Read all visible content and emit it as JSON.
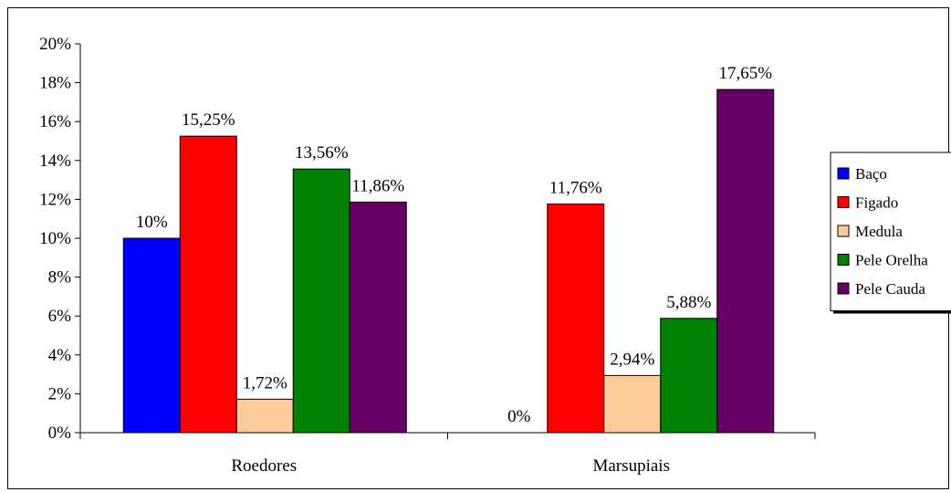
{
  "chart_data": {
    "type": "bar",
    "categories": [
      "Roedores",
      "Marsupiais"
    ],
    "series": [
      {
        "name": "Baço",
        "color": "#0000FF",
        "values": [
          10,
          0
        ],
        "labels": [
          "10%",
          "0%"
        ]
      },
      {
        "name": "Figado",
        "color": "#FF0000",
        "values": [
          15.25,
          11.76
        ],
        "labels": [
          "15,25%",
          "11,76%"
        ]
      },
      {
        "name": "Medula",
        "color": "#FFCC99",
        "values": [
          1.72,
          2.94
        ],
        "labels": [
          "1,72%",
          "2,94%"
        ]
      },
      {
        "name": "Pele Orelha",
        "color": "#008000",
        "values": [
          13.56,
          5.88
        ],
        "labels": [
          "13,56%",
          "5,88%"
        ]
      },
      {
        "name": "Pele Cauda",
        "color": "#660066",
        "values": [
          11.86,
          17.65
        ],
        "labels": [
          "11,86%",
          "17,65%"
        ]
      }
    ],
    "yticks": [
      "0%",
      "2%",
      "4%",
      "6%",
      "8%",
      "10%",
      "12%",
      "14%",
      "16%",
      "18%",
      "20%"
    ],
    "ylim": [
      0,
      20
    ],
    "grid": false,
    "legend_position": "right"
  }
}
